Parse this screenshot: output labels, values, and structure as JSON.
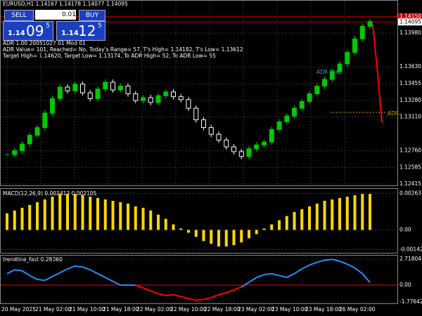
{
  "header": {
    "title": "EURUSD,H1 1.14167 1.14178 1.14077 1.14095"
  },
  "trade_panel": {
    "sell": "SELL",
    "lot": "0.01",
    "buy": "BUY",
    "bid_big": "1.14",
    "bid_pips": "09",
    "bid_frac": "5",
    "ask_big": "1.14",
    "ask_pips": "12",
    "ask_frac": "5"
  },
  "info": [
    "ADR 1.00 20051027 01 Mod 01",
    "ADR Value= 101, Reached= No, Today's Range= 57, T's High= 1.14182, T's Low= 1.13612",
    "Target High= 1.14620, Target Low= 1.13174, To ADR High= 52, To ADR Low= 55"
  ],
  "annotations": [
    "ADR Start",
    "ADR"
  ],
  "time_labels": [
    "20 May 2025",
    "21 May 02:00",
    "21 May 10:00",
    "21 May 18:00",
    "22 May 02:00",
    "22 May 10:00",
    "22 May 18:00",
    "23 May 02:00",
    "23 May 10:00",
    "23 May 18:00",
    "26 May 02:00"
  ],
  "chart_data": [
    {
      "type": "candlestick",
      "up_color": "#00c800",
      "down_color": "#ffffff",
      "values": [
        1.1272,
        1.1276,
        1.1283,
        1.1292,
        1.13,
        1.1315,
        1.133,
        1.1342,
        1.1338,
        1.1345,
        1.1336,
        1.133,
        1.134,
        1.1347,
        1.1339,
        1.1343,
        1.1335,
        1.1328,
        1.1331,
        1.1326,
        1.1333,
        1.1337,
        1.1332,
        1.1329,
        1.132,
        1.1308,
        1.13,
        1.1293,
        1.1287,
        1.128,
        1.1275,
        1.127,
        1.1278,
        1.1282,
        1.1285,
        1.1298,
        1.1306,
        1.1312,
        1.132,
        1.1327,
        1.1335,
        1.1343,
        1.135,
        1.1358,
        1.1366,
        1.1378,
        1.1392,
        1.1405,
        1.141
      ],
      "levels": [
        {
          "value": 1.1415,
          "label": "1.14150"
        },
        {
          "value": 1.14095,
          "label": "1.14095"
        }
      ],
      "ylim": [
        1.124,
        1.1425
      ],
      "yticks": [
        {
          "value": 1.1398,
          "label": "1.13980"
        },
        {
          "value": 1.1363,
          "label": "1.13630"
        },
        {
          "value": 1.13455,
          "label": "1.13455"
        },
        {
          "value": 1.1328,
          "label": "1.13280"
        },
        {
          "value": 1.1311,
          "label": "1.13110"
        },
        {
          "value": 1.1276,
          "label": "1.12760"
        },
        {
          "value": 1.12585,
          "label": "1.12585"
        },
        {
          "value": 1.12415,
          "label": "1.12415"
        }
      ],
      "grid": true
    },
    {
      "type": "histogram",
      "title": "MACD(12,26,9) 0.002413 0.002105",
      "color": "#ffd700",
      "values": [
        0.0012,
        0.0014,
        0.0016,
        0.0018,
        0.002,
        0.0022,
        0.0024,
        0.0026,
        0.0026,
        0.0026,
        0.0025,
        0.0024,
        0.0023,
        0.0022,
        0.0021,
        0.002,
        0.0019,
        0.0017,
        0.0016,
        0.0014,
        0.0011,
        0.0008,
        0.0004,
        0.0001,
        -0.0002,
        -0.0005,
        -0.0008,
        -0.001,
        -0.0012,
        -0.0012,
        -0.0011,
        -0.0009,
        -0.0006,
        -0.0003,
        0.0001,
        0.0004,
        0.0007,
        0.001,
        0.0013,
        0.0015,
        0.0017,
        0.0019,
        0.0021,
        0.0022,
        0.0023,
        0.0024,
        0.0025,
        0.0026,
        0.0026
      ],
      "ylim": [
        -0.00165,
        0.00296
      ],
      "yticks": [
        0.002631,
        {
          "value": 0,
          "label": "0.00"
        },
        -0.001422
      ]
    },
    {
      "type": "signline",
      "title": "trendline_fast 0.28360",
      "up_color": "#1e90ff",
      "down_color": "#ff0000",
      "values": [
        1.2,
        1.6,
        1.5,
        1.0,
        0.6,
        0.5,
        0.9,
        1.3,
        1.7,
        2.0,
        1.9,
        1.6,
        1.2,
        0.8,
        0.4,
        0,
        0,
        0,
        -0.3,
        -0.6,
        -0.9,
        -1.1,
        -1.0,
        -1.2,
        -1.4,
        -1.6,
        -1.5,
        -1.3,
        -1.0,
        -0.8,
        -0.5,
        -0.2,
        0.3,
        0.8,
        1.1,
        1.2,
        1.0,
        0.8,
        1.2,
        1.7,
        2.1,
        2.4,
        2.6,
        2.7,
        2.5,
        2.2,
        1.8,
        1.2,
        0.28
      ],
      "ylim": [
        -1.91,
        3.09
      ],
      "yticks": [
        2.71804,
        {
          "value": 0,
          "label": "0.00"
        },
        -1.77642
      ]
    }
  ]
}
